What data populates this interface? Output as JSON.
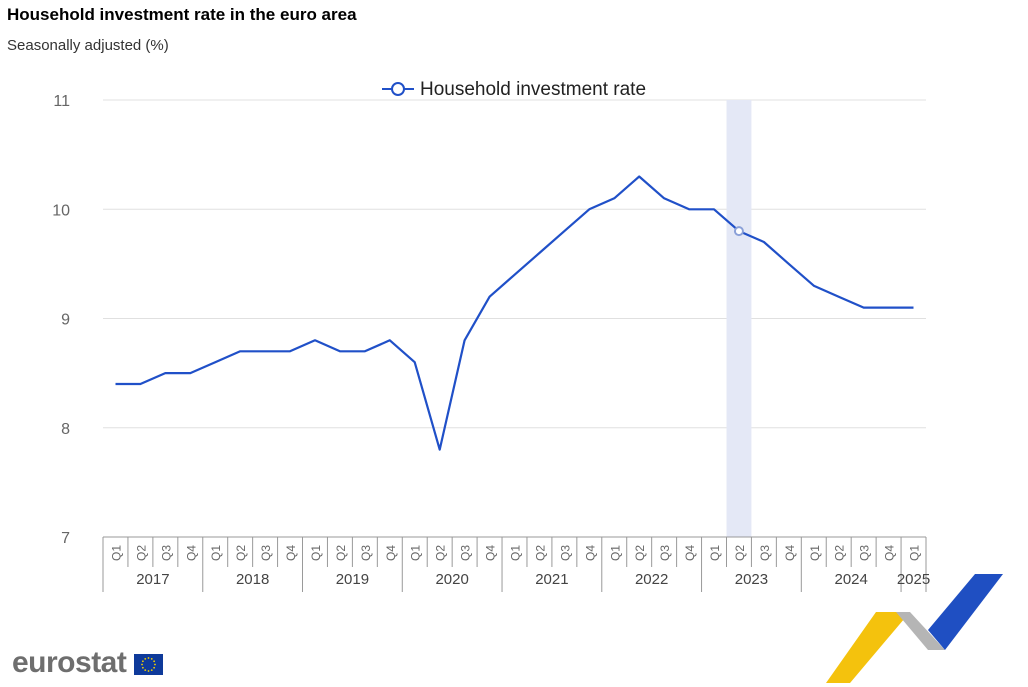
{
  "header": {
    "title": "Household investment rate in the euro area",
    "subtitle": "Seasonally adjusted (%)"
  },
  "brand": {
    "name": "eurostat"
  },
  "colors": {
    "series": "#2050c8",
    "highlight": "#e4e8f6",
    "grid": "#e0e0e0",
    "axis": "#999999"
  },
  "chart_data": {
    "type": "line",
    "title": "Household investment rate in the euro area",
    "subtitle": "Seasonally adjusted (%)",
    "legend": {
      "position": "top-center",
      "entries": [
        "Household investment rate"
      ]
    },
    "ylim": [
      7,
      11
    ],
    "yticks": [
      "7",
      "8",
      "9",
      "10",
      "11"
    ],
    "grid": true,
    "highlight_period": "2023-Q2",
    "years": [
      "2017",
      "2018",
      "2019",
      "2020",
      "2021",
      "2022",
      "2023",
      "2024",
      "2025"
    ],
    "quarter_labels": [
      "Q1",
      "Q2",
      "Q3",
      "Q4"
    ],
    "x": [
      "2017-Q1",
      "2017-Q2",
      "2017-Q3",
      "2017-Q4",
      "2018-Q1",
      "2018-Q2",
      "2018-Q3",
      "2018-Q4",
      "2019-Q1",
      "2019-Q2",
      "2019-Q3",
      "2019-Q4",
      "2020-Q1",
      "2020-Q2",
      "2020-Q3",
      "2020-Q4",
      "2021-Q1",
      "2021-Q2",
      "2021-Q3",
      "2021-Q4",
      "2022-Q1",
      "2022-Q2",
      "2022-Q3",
      "2022-Q4",
      "2023-Q1",
      "2023-Q2",
      "2023-Q3",
      "2023-Q4",
      "2024-Q1",
      "2024-Q2",
      "2024-Q3",
      "2024-Q4",
      "2025-Q1"
    ],
    "series": [
      {
        "name": "Household investment rate",
        "values": [
          8.4,
          8.4,
          8.5,
          8.5,
          8.6,
          8.7,
          8.7,
          8.7,
          8.8,
          8.7,
          8.7,
          8.8,
          8.6,
          7.8,
          8.8,
          9.2,
          9.4,
          9.6,
          9.8,
          10.0,
          10.1,
          10.3,
          10.1,
          10.0,
          10.0,
          9.8,
          9.7,
          9.5,
          9.3,
          9.2,
          9.1,
          9.1,
          9.1
        ]
      }
    ]
  }
}
